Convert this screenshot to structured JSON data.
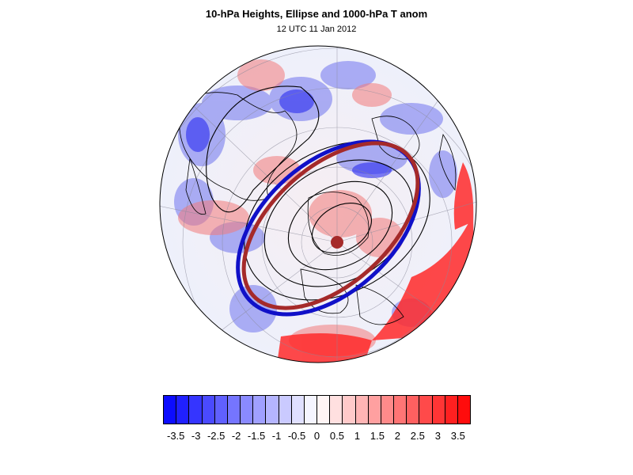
{
  "title": "10-hPa Heights, Ellipse and 1000-hPa T anom",
  "subtitle": "12 UTC 11 Jan 2012",
  "colorbar": {
    "colors": [
      "#0c0cff",
      "#2020ff",
      "#3535ff",
      "#4a4aff",
      "#6060ff",
      "#7575ff",
      "#8a8aff",
      "#a0a0ff",
      "#b5b5ff",
      "#cacaff",
      "#e0e0ff",
      "#f5f5ff",
      "#fff5f5",
      "#ffe0e0",
      "#ffcaca",
      "#ffb5b5",
      "#ffa0a0",
      "#ff8a8a",
      "#ff7575",
      "#ff6060",
      "#ff4a4a",
      "#ff3535",
      "#ff2020",
      "#ff0c0c"
    ],
    "labels": [
      "-3.5",
      "-3",
      "-2.5",
      "-2",
      "-1.5",
      "-1",
      "-0.5",
      "0",
      "0.5",
      "1",
      "1.5",
      "2",
      "2.5",
      "3",
      "3.5"
    ]
  },
  "map": {
    "projection": "polar stereographic",
    "fill_field": "1000-hPa T anom",
    "contour_field": "10-hPa Heights",
    "ellipse_colors": {
      "blue": "#1010c8",
      "dark_red": "#a52a2a"
    }
  }
}
